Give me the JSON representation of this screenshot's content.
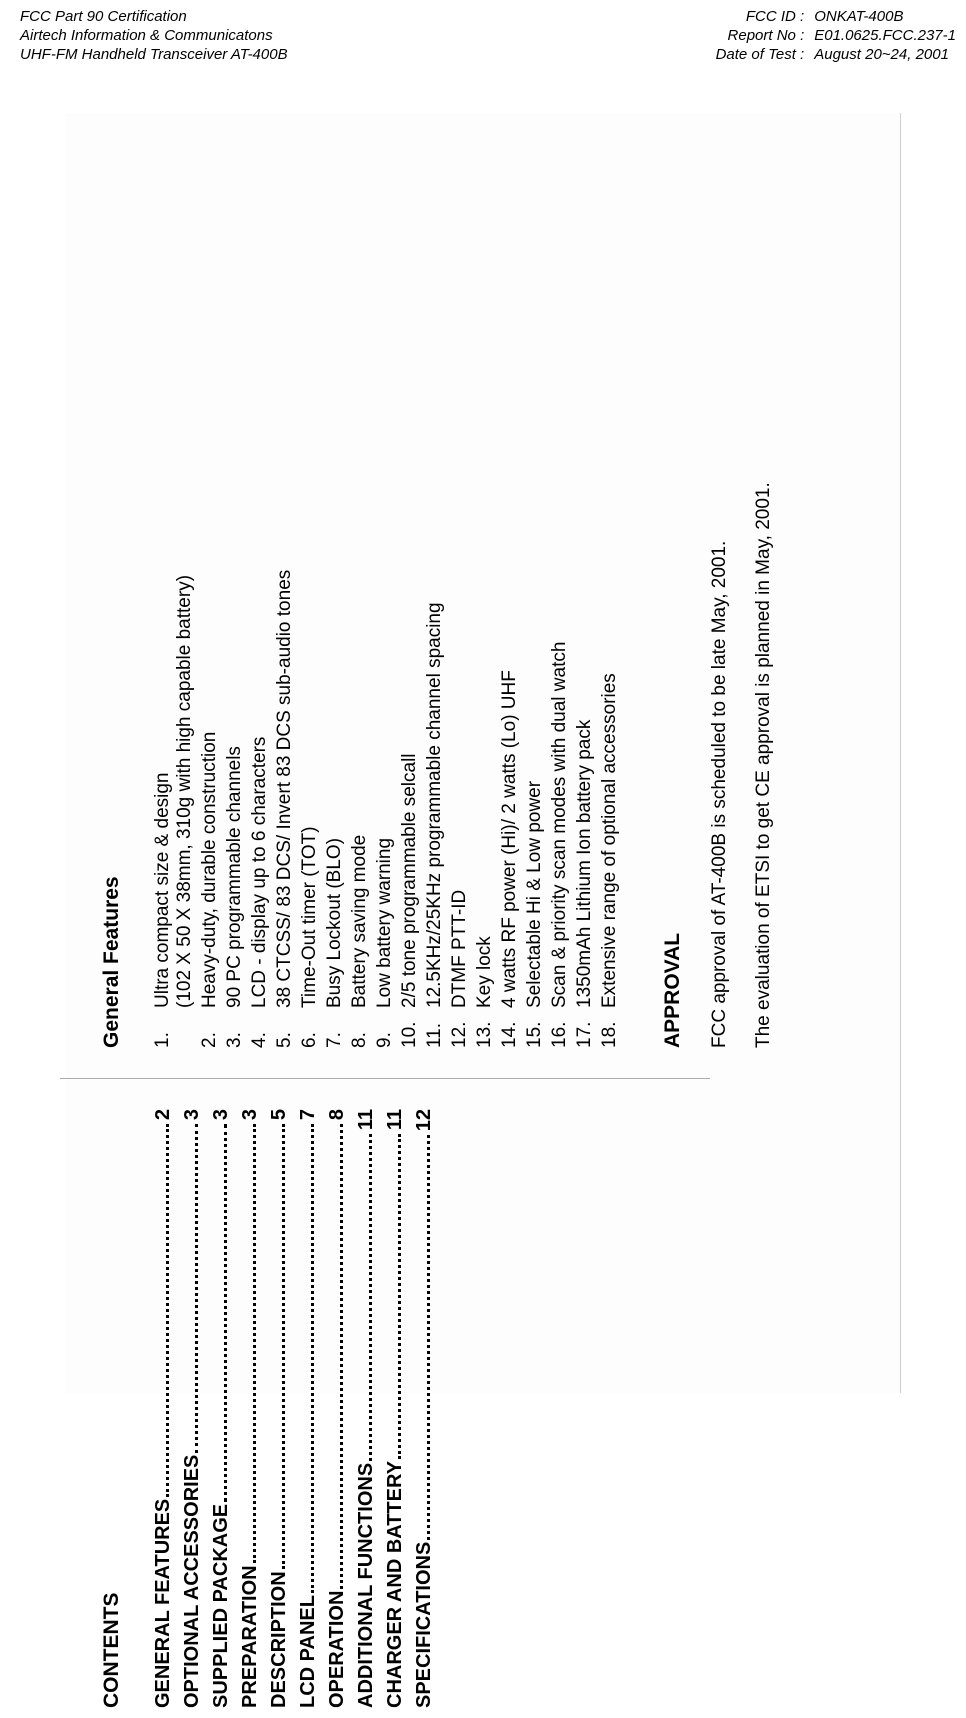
{
  "header": {
    "left": [
      "FCC Part 90 Certification",
      "Airtech Information & Communicatons",
      "UHF-FM Handheld Transceiver AT-400B"
    ],
    "right": [
      {
        "label": "FCC ID :",
        "value": "ONKAT-400B"
      },
      {
        "label": "Report No :",
        "value": "E01.0625.FCC.237-1"
      },
      {
        "label": "Date of Test :",
        "value": "August 20~24, 2001"
      }
    ]
  },
  "contents": {
    "title": "CONTENTS",
    "items": [
      {
        "label": "GENERAL FEATURES",
        "page": "2"
      },
      {
        "label": "OPTIONAL ACCESSORIES",
        "page": "3"
      },
      {
        "label": "SUPPLIED PACKAGE",
        "page": "3"
      },
      {
        "label": "PREPARATION",
        "page": "3"
      },
      {
        "label": "DESCRIPTION",
        "page": "5"
      },
      {
        "label": "LCD PANEL",
        "page": "7"
      },
      {
        "label": "OPERATION",
        "page": "8"
      },
      {
        "label": "ADDITIONAL FUNCTIONS",
        "page": "11"
      },
      {
        "label": "CHARGER AND BATTERY",
        "page": "11"
      },
      {
        "label": "SPECIFICATIONS",
        "page": "12"
      }
    ]
  },
  "features": {
    "title": "General Features",
    "items": [
      {
        "num": "1.",
        "text": "Ultra compact size & design\n(102 X 50 X 38mm, 310g with high capable battery)"
      },
      {
        "num": "2.",
        "text": "Heavy-duty, durable construction"
      },
      {
        "num": "3.",
        "text": "90 PC programmable channels"
      },
      {
        "num": "4.",
        "text": "LCD - display up to 6 characters"
      },
      {
        "num": "5.",
        "text": "38 CTCSS/ 83 DCS/ Invert 83 DCS sub-audio tones"
      },
      {
        "num": "6.",
        "text": "Time-Out timer (TOT)"
      },
      {
        "num": "7.",
        "text": "Busy Lockout (BLO)"
      },
      {
        "num": "8.",
        "text": "Battery saving mode"
      },
      {
        "num": "9.",
        "text": "Low battery warning"
      },
      {
        "num": "10.",
        "text": "2/5 tone programmable selcall"
      },
      {
        "num": "11.",
        "text": "12.5KHz/25KHz programmable channel spacing"
      },
      {
        "num": "12.",
        "text": "DTMF PTT-ID"
      },
      {
        "num": "13.",
        "text": "Key lock"
      },
      {
        "num": "14.",
        "text": "4 watts RF power (Hi)/ 2 watts (Lo) UHF"
      },
      {
        "num": "15.",
        "text": "Selectable Hi & Low power"
      },
      {
        "num": "16.",
        "text": "Scan & priority scan modes with dual watch"
      },
      {
        "num": "17.",
        "text": "1350mAh Lithium Ion battery pack"
      },
      {
        "num": "18.",
        "text": "Extensive range of optional accessories"
      }
    ]
  },
  "approval": {
    "title": "APPROVAL",
    "lines": [
      "FCC approval of AT-400B is scheduled to be late May, 2001.",
      "The evaluation of ETSI to get CE approval is planned in May, 2001."
    ]
  }
}
